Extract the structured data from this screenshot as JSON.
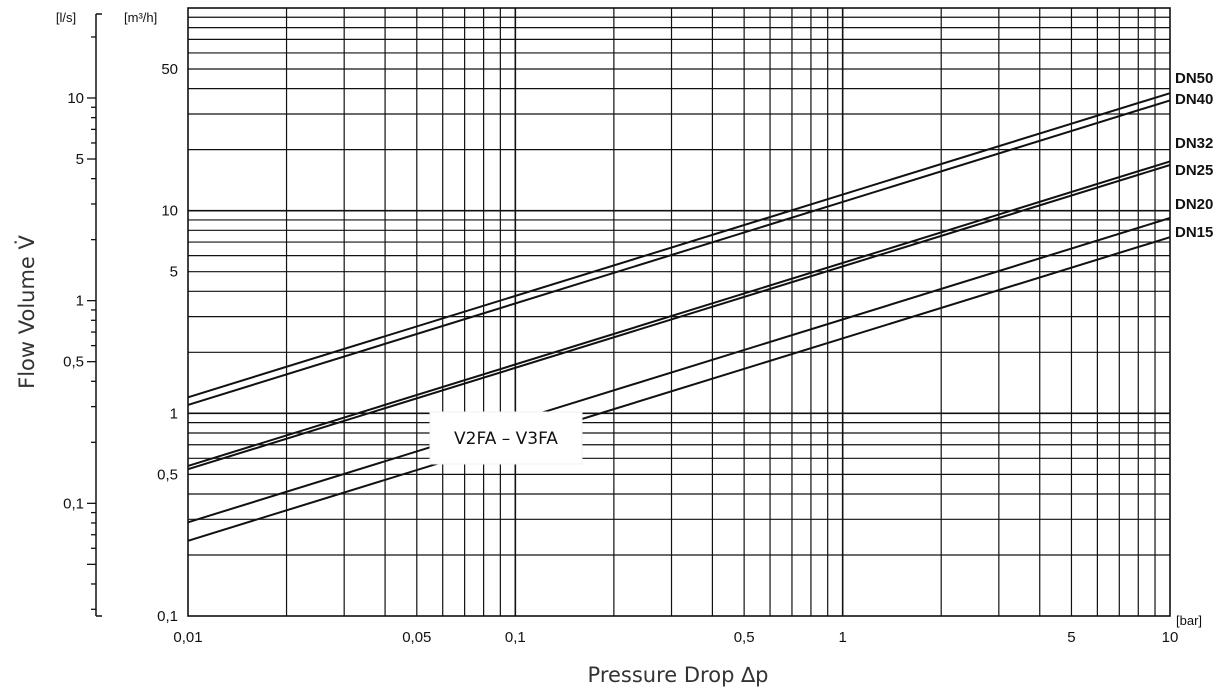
{
  "chart_data": {
    "type": "line",
    "title": "",
    "xlabel": "Pressure Drop ∆p",
    "ylabel": "Flow Volume V̇",
    "x_unit": "[bar]",
    "y_unit_primary": "[m³/h]",
    "y_unit_secondary": "[l/s]",
    "x_scale": "log",
    "y_scale": "log",
    "xlim": [
      0.01,
      10
    ],
    "ylim": [
      0.1,
      100
    ],
    "y_secondary_lim": [
      0.0278,
      27.8
    ],
    "grid": true,
    "x_ticks": [
      {
        "value": 0.01,
        "label": "0,01"
      },
      {
        "value": 0.05,
        "label": "0,05"
      },
      {
        "value": 0.1,
        "label": "0,1"
      },
      {
        "value": 0.5,
        "label": "0,5"
      },
      {
        "value": 1,
        "label": "1"
      },
      {
        "value": 5,
        "label": "5"
      },
      {
        "value": 10,
        "label": "10"
      }
    ],
    "y_ticks": [
      {
        "value": 0.1,
        "label": "0,1"
      },
      {
        "value": 0.5,
        "label": "0,5"
      },
      {
        "value": 1,
        "label": "1"
      },
      {
        "value": 5,
        "label": "5"
      },
      {
        "value": 10,
        "label": "10"
      },
      {
        "value": 50,
        "label": "50"
      }
    ],
    "y_secondary_ticks": [
      {
        "value": 0.1,
        "label": "0,1"
      },
      {
        "value": 0.5,
        "label": "0,5"
      },
      {
        "value": 1,
        "label": "1"
      },
      {
        "value": 5,
        "label": "5"
      },
      {
        "value": 10,
        "label": "10"
      }
    ],
    "annotation": "V2FA – V3FA",
    "series": [
      {
        "name": "DN50",
        "x": [
          0.01,
          10
        ],
        "y": [
          1.2,
          38
        ]
      },
      {
        "name": "DN40",
        "x": [
          0.01,
          10
        ],
        "y": [
          1.1,
          35
        ]
      },
      {
        "name": "DN32",
        "x": [
          0.01,
          10
        ],
        "y": [
          0.55,
          17.5
        ]
      },
      {
        "name": "DN25",
        "x": [
          0.01,
          10
        ],
        "y": [
          0.53,
          16.8
        ]
      },
      {
        "name": "DN20",
        "x": [
          0.01,
          10
        ],
        "y": [
          0.29,
          9.2
        ]
      },
      {
        "name": "DN15",
        "x": [
          0.01,
          10
        ],
        "y": [
          0.235,
          7.4
        ]
      }
    ]
  }
}
